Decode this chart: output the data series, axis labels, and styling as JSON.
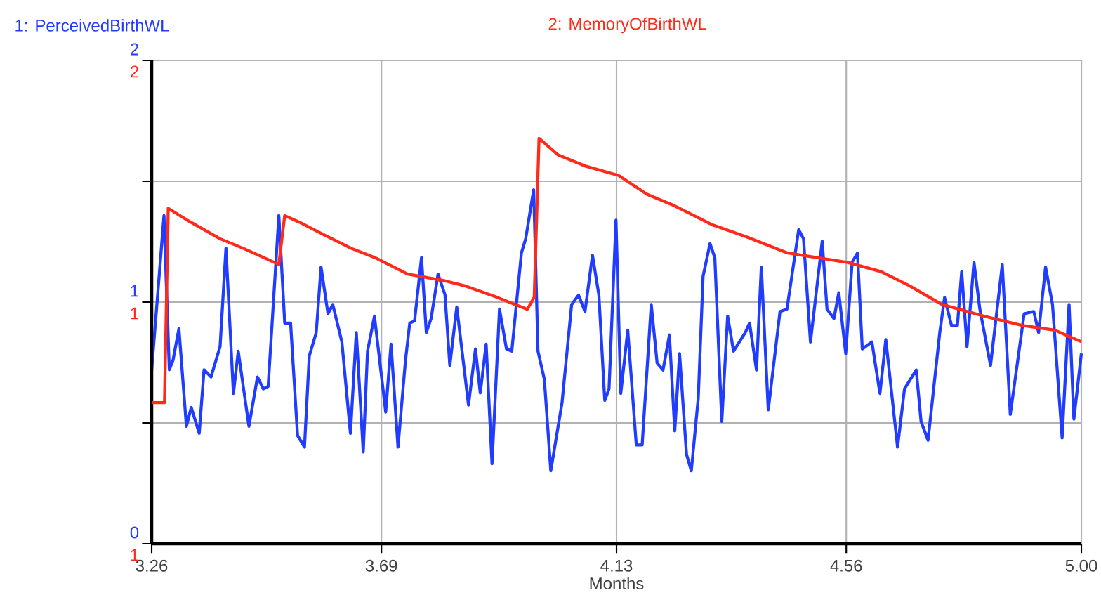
{
  "chart_data": {
    "type": "line",
    "xlabel": "Months",
    "legend": "top",
    "grid": true,
    "xlim": [
      3.26,
      5.0
    ],
    "xticks": [
      3.26,
      3.69,
      4.13,
      4.56,
      {
        "value": 5.0,
        "label": "5.00"
      }
    ],
    "ylim": [
      0,
      2
    ],
    "yticks": [
      0,
      {
        "value": 0.5,
        "label": null
      },
      1,
      {
        "value": 1.5,
        "label": null
      },
      2
    ],
    "y2lim": [
      1,
      2
    ],
    "y2ticks": [
      1,
      {
        "value": 1.25,
        "label": null
      },
      {
        "value": 1.5,
        "label": "1"
      },
      {
        "value": 1.75,
        "label": null
      },
      2
    ],
    "series": [
      {
        "name": "1:  PerceivedBirthWL",
        "color": "#1f3cff",
        "axis": "y",
        "x": [
          3.26,
          3.283,
          3.293,
          3.3,
          3.311,
          3.325,
          3.334,
          3.349,
          3.358,
          3.371,
          3.388,
          3.399,
          3.413,
          3.422,
          3.442,
          3.458,
          3.469,
          3.478,
          3.498,
          3.509,
          3.52,
          3.533,
          3.546,
          3.555,
          3.568,
          3.577,
          3.59,
          3.599,
          3.616,
          3.632,
          3.643,
          3.656,
          3.664,
          3.677,
          3.698,
          3.708,
          3.721,
          3.735,
          3.743,
          3.752,
          3.765,
          3.774,
          3.783,
          3.796,
          3.809,
          3.818,
          3.831,
          3.853,
          3.866,
          3.875,
          3.886,
          3.897,
          3.911,
          3.924,
          3.934,
          3.952,
          3.96,
          3.975,
          3.983,
          3.995,
          4.007,
          4.028,
          4.046,
          4.059,
          4.071,
          4.085,
          4.097,
          4.108,
          4.116,
          4.129,
          4.138,
          4.151,
          4.167,
          4.178,
          4.195,
          4.206,
          4.217,
          4.229,
          4.239,
          4.248,
          4.261,
          4.27,
          4.283,
          4.292,
          4.305,
          4.314,
          4.327,
          4.338,
          4.349,
          4.371,
          4.379,
          4.392,
          4.401,
          4.414,
          4.436,
          4.449,
          4.471,
          4.48,
          4.493,
          4.515,
          4.524,
          4.537,
          4.546,
          4.559,
          4.571,
          4.581,
          4.59,
          4.608,
          4.623,
          4.634,
          4.656,
          4.669,
          4.691,
          4.7,
          4.713,
          4.735,
          4.744,
          4.757,
          4.768,
          4.776,
          4.786,
          4.799,
          4.81,
          4.83,
          4.852,
          4.867,
          4.893,
          4.911,
          4.92,
          4.933,
          4.946,
          4.964,
          4.977,
          4.986,
          5.0
        ],
        "values": [
          0.72,
          1.358,
          0.72,
          0.76,
          0.89,
          0.486,
          0.564,
          0.457,
          0.72,
          0.69,
          0.816,
          1.223,
          0.622,
          0.797,
          0.486,
          0.69,
          0.641,
          0.651,
          1.358,
          0.913,
          0.913,
          0.448,
          0.4,
          0.777,
          0.874,
          1.145,
          0.952,
          0.99,
          0.835,
          0.457,
          0.874,
          0.38,
          0.797,
          0.942,
          0.545,
          0.826,
          0.4,
          0.758,
          0.913,
          0.922,
          1.184,
          0.874,
          0.932,
          1.116,
          1.03,
          0.738,
          0.98,
          0.574,
          0.806,
          0.624,
          0.826,
          0.331,
          0.971,
          0.806,
          0.797,
          1.203,
          1.262,
          1.465,
          0.797,
          0.68,
          0.302,
          0.583,
          0.99,
          1.029,
          0.961,
          1.194,
          1.029,
          0.593,
          0.641,
          1.339,
          0.622,
          0.884,
          0.409,
          0.409,
          0.99,
          0.748,
          0.719,
          0.864,
          0.467,
          0.787,
          0.37,
          0.302,
          0.603,
          1.107,
          1.242,
          1.184,
          0.506,
          0.942,
          0.797,
          0.874,
          0.913,
          0.719,
          1.145,
          0.554,
          0.961,
          0.971,
          1.3,
          1.262,
          0.835,
          1.252,
          0.971,
          0.932,
          1.039,
          0.787,
          1.165,
          1.203,
          0.806,
          0.835,
          0.622,
          0.845,
          0.4,
          0.641,
          0.719,
          0.506,
          0.428,
          0.874,
          1.019,
          0.903,
          0.903,
          1.126,
          0.816,
          1.165,
          0.971,
          0.738,
          1.155,
          0.535,
          0.952,
          0.961,
          0.874,
          1.145,
          0.99,
          0.438,
          0.99,
          0.516,
          0.787
        ]
      },
      {
        "name": "2:  MemoryOfBirthWL",
        "color": "#ff2a1a",
        "axis": "y2",
        "x": [
          3.26,
          3.284,
          3.291,
          3.326,
          3.388,
          3.432,
          3.498,
          3.509,
          3.537,
          3.581,
          3.634,
          3.678,
          3.739,
          3.809,
          3.845,
          3.906,
          3.963,
          3.976,
          3.985,
          4.02,
          4.073,
          4.134,
          4.187,
          4.239,
          4.309,
          4.371,
          4.449,
          4.563,
          4.625,
          4.678,
          4.739,
          4.818,
          4.888,
          4.95,
          5.0
        ],
        "values": [
          1.292,
          1.292,
          1.694,
          1.67,
          1.631,
          1.611,
          1.578,
          1.679,
          1.665,
          1.64,
          1.611,
          1.592,
          1.558,
          1.544,
          1.534,
          1.51,
          1.485,
          1.51,
          1.839,
          1.805,
          1.781,
          1.762,
          1.723,
          1.699,
          1.66,
          1.636,
          1.602,
          1.582,
          1.563,
          1.534,
          1.495,
          1.471,
          1.452,
          1.442,
          1.418
        ]
      }
    ]
  }
}
